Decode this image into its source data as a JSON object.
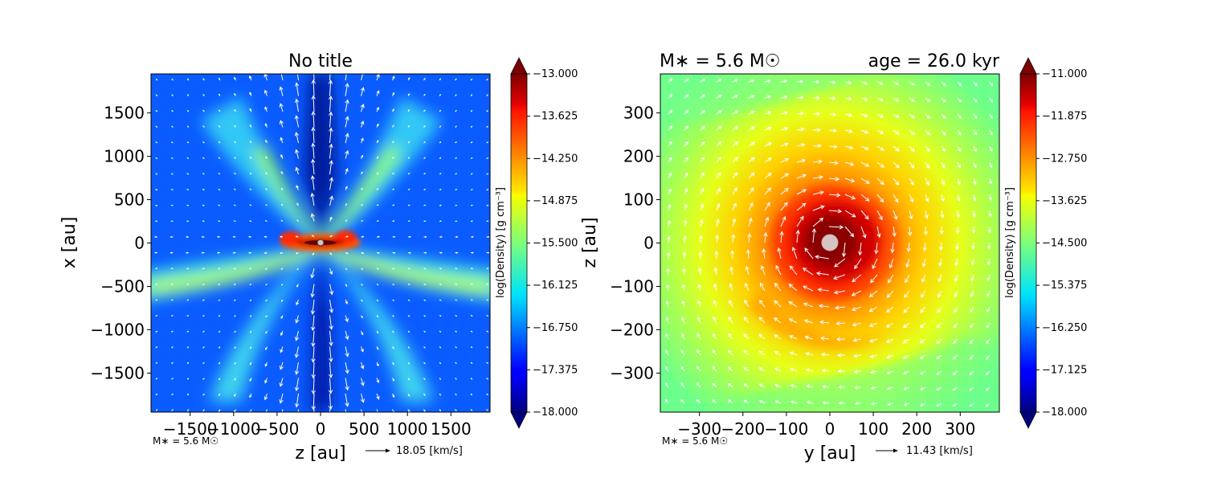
{
  "chart_data": [
    {
      "type": "heatmap",
      "title": "No title",
      "title_right": "",
      "xlabel": "z [au]",
      "ylabel": "x [au]",
      "xlim": [
        -1950,
        1950
      ],
      "ylim": [
        -1950,
        1950
      ],
      "xticks": [
        -1500,
        -1000,
        -500,
        0,
        500,
        1000,
        1500
      ],
      "yticks": [
        -1500,
        -1000,
        -500,
        0,
        500,
        1000,
        1500
      ],
      "xticklabels": [
        "−1500",
        "−1000",
        "−500",
        "0",
        "500",
        "1000",
        "1500"
      ],
      "yticklabels": [
        "−1500",
        "−1000",
        "−500",
        "0",
        "500",
        "1000",
        "1500"
      ],
      "colorbar": {
        "label": "log(Density) [g cm⁻³]",
        "range": [
          -18.0,
          -13.0
        ],
        "ticks": [
          "−13.000",
          "−13.625",
          "−14.250",
          "−14.875",
          "−15.500",
          "−16.125",
          "−16.750",
          "−17.375",
          "−18.000"
        ]
      },
      "colormap": "jet",
      "structure": "edge-on disk with bipolar outflow cavities",
      "vector_field": "velocity",
      "reference_vector": "18.05 [km/s]",
      "annotation": "M∗ = 5.6 M☉"
    },
    {
      "type": "heatmap",
      "title": "M∗ = 5.6 M☉",
      "title_right": "age = 26.0 kyr",
      "xlabel": "y [au]",
      "ylabel": "z [au]",
      "xlim": [
        -390,
        390
      ],
      "ylim": [
        -390,
        390
      ],
      "xticks": [
        -300,
        -200,
        -100,
        0,
        100,
        200,
        300
      ],
      "yticks": [
        -300,
        -200,
        -100,
        0,
        100,
        200,
        300
      ],
      "xticklabels": [
        "−300",
        "−200",
        "−100",
        "0",
        "100",
        "200",
        "300"
      ],
      "yticklabels": [
        "−300",
        "−200",
        "−100",
        "0",
        "100",
        "200",
        "300"
      ],
      "colorbar": {
        "label": "log(Density) [g cm⁻³]",
        "range": [
          -18.0,
          -11.0
        ],
        "ticks": [
          "−11.000",
          "−11.875",
          "−12.750",
          "−13.625",
          "−14.500",
          "−15.375",
          "−16.250",
          "−17.125",
          "−18.000"
        ]
      },
      "colormap": "jet",
      "structure": "face-on rotating disk",
      "vector_field": "velocity",
      "reference_vector": "11.43 [km/s]",
      "annotation": "M∗ = 5.6 M☉"
    }
  ]
}
